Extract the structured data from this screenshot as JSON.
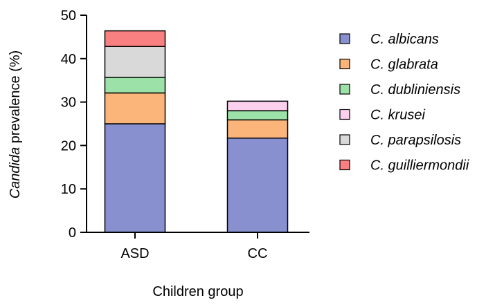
{
  "chart_data": {
    "type": "bar",
    "stacked": true,
    "categories": [
      "ASD",
      "CC"
    ],
    "series": [
      {
        "name": "C. albicans",
        "values": [
          25.0,
          21.7
        ],
        "color": "#8890D0"
      },
      {
        "name": "C. glabrata",
        "values": [
          7.1,
          4.2
        ],
        "color": "#FBB57A"
      },
      {
        "name": "C. dubliniensis",
        "values": [
          3.6,
          2.1
        ],
        "color": "#9CE2A8"
      },
      {
        "name": "C. krusei",
        "values": [
          0,
          2.2
        ],
        "color": "#FDD0EE"
      },
      {
        "name": "C. parapsilosis",
        "values": [
          7.1,
          0
        ],
        "color": "#D9D9D9"
      },
      {
        "name": "C. guilliermondii",
        "values": [
          3.6,
          0
        ],
        "color": "#F98080"
      }
    ],
    "ylabel_italic": "Candida",
    "ylabel_rest": " prevalence (%)",
    "xlabel": "Children group",
    "ylim": [
      0,
      50
    ],
    "yticks": [
      0,
      10,
      20,
      30,
      40,
      50
    ],
    "grid": false,
    "legend_position": "right"
  }
}
